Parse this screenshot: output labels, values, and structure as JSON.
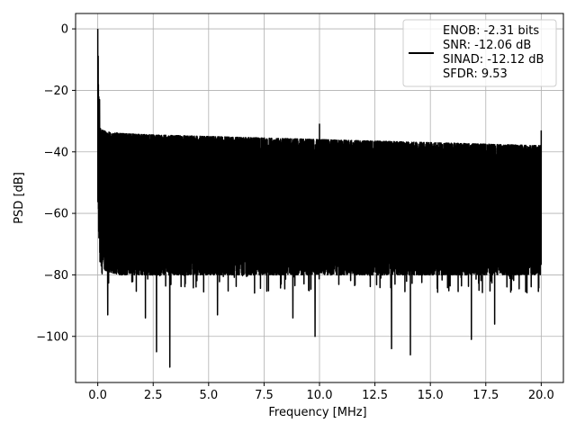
{
  "chart_data": {
    "type": "line",
    "xlabel": "Frequency [MHz]",
    "ylabel": "PSD [dB]",
    "xlim": [
      -1.0,
      21.0
    ],
    "ylim": [
      -115,
      5
    ],
    "xticks": [
      0.0,
      2.5,
      5.0,
      7.5,
      10.0,
      12.5,
      15.0,
      17.5,
      20.0
    ],
    "xtick_labels": [
      "0.0",
      "2.5",
      "5.0",
      "7.5",
      "10.0",
      "12.5",
      "15.0",
      "17.5",
      "20.0"
    ],
    "yticks": [
      0,
      -20,
      -40,
      -60,
      -80,
      -100
    ],
    "ytick_labels": [
      "0",
      "−20",
      "−40",
      "−60",
      "−80",
      "−100"
    ],
    "grid": true,
    "legend_position": "top-right",
    "series": [
      {
        "color": "#000000",
        "envelope": {
          "x": [
            0.0,
            0.05,
            0.1,
            0.2,
            0.5,
            1.0,
            2.5,
            5.0,
            7.5,
            10.0,
            12.5,
            15.0,
            17.5,
            20.0
          ],
          "upper": [
            0,
            -23,
            -32,
            -33,
            -33.5,
            -34,
            -34.5,
            -35,
            -35.5,
            -36,
            -36.5,
            -37,
            -37.5,
            -38
          ],
          "lower": [
            -56,
            -68,
            -76,
            -78,
            -79,
            -80,
            -80,
            -80,
            -80,
            -80,
            -80,
            -80,
            -80,
            -80
          ]
        },
        "peaks": [
          {
            "x": 0.0,
            "y": 0
          },
          {
            "x": 0.08,
            "y": -23
          },
          {
            "x": 10.0,
            "y": -31
          },
          {
            "x": 20.0,
            "y": -33
          }
        ],
        "dips": [
          {
            "x": 0.45,
            "y": -93
          },
          {
            "x": 2.15,
            "y": -94
          },
          {
            "x": 2.65,
            "y": -105
          },
          {
            "x": 3.25,
            "y": -110
          },
          {
            "x": 5.4,
            "y": -93
          },
          {
            "x": 8.8,
            "y": -94
          },
          {
            "x": 9.8,
            "y": -100
          },
          {
            "x": 13.25,
            "y": -104
          },
          {
            "x": 14.1,
            "y": -106
          },
          {
            "x": 16.85,
            "y": -101
          },
          {
            "x": 17.9,
            "y": -96
          }
        ]
      }
    ],
    "legend": {
      "lines": [
        "ENOB: -2.31 bits",
        "SNR: -12.06 dB",
        "SINAD: -12.12 dB",
        "SFDR: 9.53"
      ],
      "swatch_color": "#000000"
    }
  }
}
